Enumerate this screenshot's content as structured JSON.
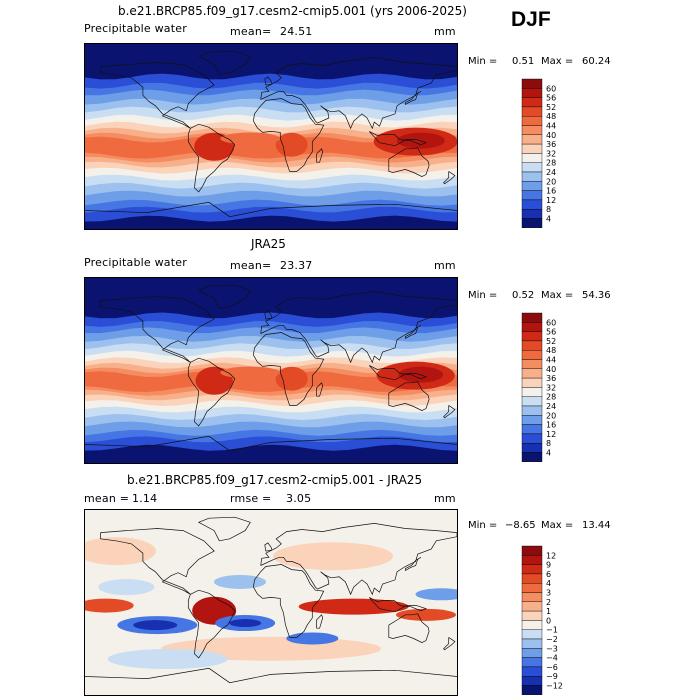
{
  "season": "DJF",
  "colors": {
    "wet": "#8a0c0c",
    "dry": "#0a1370",
    "neutral": "#f4f1ea"
  },
  "chart_data": [
    {
      "type": "contour-map",
      "title": "b.e21.BRCP85.f09_g17.cesm2-cmip5.001 (yrs 2006-2025)",
      "field_label": "Precipitable water",
      "stat_label": "mean=",
      "stat_value": "24.51",
      "units": "mm",
      "min_label": "Min =",
      "min_value": "0.51",
      "max_label": "Max =",
      "max_value": "60.24",
      "levels": [
        "60",
        "56",
        "52",
        "48",
        "44",
        "40",
        "36",
        "32",
        "28",
        "24",
        "20",
        "16",
        "12",
        "8",
        "4"
      ],
      "tropical_peak_mm": 58
    },
    {
      "type": "contour-map",
      "title": "JRA25",
      "field_label": "Precipitable water",
      "stat_label": "mean=",
      "stat_value": "23.37",
      "units": "mm",
      "min_label": "Min =",
      "min_value": "0.52",
      "max_label": "Max =",
      "max_value": "54.36",
      "levels": [
        "60",
        "56",
        "52",
        "48",
        "44",
        "40",
        "36",
        "32",
        "28",
        "24",
        "20",
        "16",
        "12",
        "8",
        "4"
      ],
      "tropical_peak_mm": 54
    },
    {
      "type": "contour-map-difference",
      "title": "b.e21.BRCP85.f09_g17.cesm2-cmip5.001 - JRA25",
      "field_label": "mean =",
      "field_value": "1.14",
      "stat_label": "rmse =",
      "stat_value": "3.05",
      "units": "mm",
      "min_label": "Min =",
      "min_value": "−8.65",
      "max_label": "Max =",
      "max_value": "13.44",
      "levels": [
        "12",
        "9",
        "6",
        "4",
        "3",
        "2",
        "1",
        "0",
        "−1",
        "−2",
        "−3",
        "−4",
        "−6",
        "−9",
        "−12"
      ]
    }
  ]
}
